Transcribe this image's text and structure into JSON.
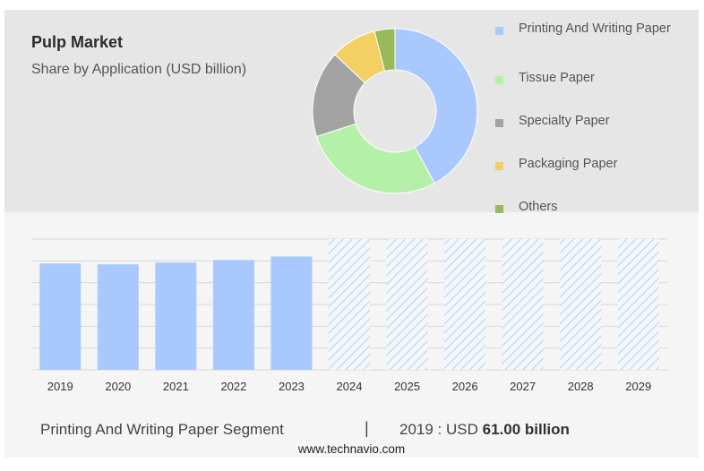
{
  "header": {
    "title": "Pulp Market",
    "subtitle": "Share by Application (USD billion)"
  },
  "colors": {
    "top_panel": "#e6e6e6",
    "bottom_panel": "#f5f5f5",
    "bar_fill": "#a9c8fd",
    "forecast_hatch": "#b8cfe8"
  },
  "chart_data": [
    {
      "type": "pie",
      "variant": "donut",
      "slices": [
        {
          "label": "Printing And Writing Paper",
          "value": 42,
          "color": "#a9c8fd"
        },
        {
          "label": "Tissue Paper",
          "value": 28,
          "color": "#b5f0a8"
        },
        {
          "label": "Specialty Paper",
          "value": 17,
          "color": "#a3a3a3"
        },
        {
          "label": "Packaging Paper",
          "value": 9,
          "color": "#f4cf63"
        },
        {
          "label": "Others",
          "value": 4,
          "color": "#9aba5a"
        }
      ],
      "legend_position": "right"
    },
    {
      "type": "bar",
      "categories": [
        "2019",
        "2020",
        "2021",
        "2022",
        "2023",
        "2024",
        "2025",
        "2026",
        "2027",
        "2028",
        "2029"
      ],
      "values": [
        61.0,
        60.5,
        61.5,
        63.0,
        65.0,
        null,
        null,
        null,
        null,
        null,
        null
      ],
      "forecast_categories": [
        "2024",
        "2025",
        "2026",
        "2027",
        "2028",
        "2029"
      ],
      "forecast_values": [
        75,
        75,
        75,
        75,
        75,
        75
      ],
      "ylim": [
        0,
        75
      ],
      "grid": true
    }
  ],
  "footer": {
    "segment_label": "Printing And Writing Paper Segment",
    "separator": "|",
    "year_prefix": "2019 : USD ",
    "value": "61.00 billion",
    "site": "www.technavio.com"
  }
}
